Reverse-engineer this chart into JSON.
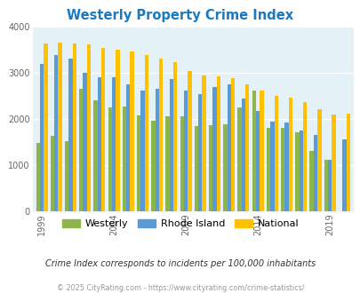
{
  "title": "Westerly Property Crime Index",
  "title_color": "#1a7abf",
  "years": [
    1999,
    2000,
    2001,
    2002,
    2003,
    2004,
    2005,
    2006,
    2007,
    2008,
    2009,
    2010,
    2011,
    2012,
    2013,
    2014,
    2015,
    2016,
    2017,
    2018,
    2019,
    2020
  ],
  "westerly": [
    1480,
    1620,
    1520,
    2640,
    2400,
    2240,
    2260,
    2070,
    1960,
    2050,
    2060,
    1840,
    1850,
    1870,
    2240,
    2610,
    1810,
    1800,
    1710,
    1300,
    1100,
    0
  ],
  "rhode_island": [
    3190,
    3370,
    3300,
    2990,
    2900,
    2900,
    2750,
    2600,
    2640,
    2850,
    2610,
    2540,
    2690,
    2740,
    2440,
    2170,
    1930,
    1920,
    1740,
    1650,
    1110,
    1550
  ],
  "national": [
    3620,
    3650,
    3620,
    3600,
    3530,
    3500,
    3450,
    3370,
    3310,
    3220,
    3040,
    2940,
    2920,
    2870,
    2740,
    2600,
    2490,
    2450,
    2360,
    2200,
    2090,
    2100
  ],
  "westerly_color": "#8db54b",
  "rhode_island_color": "#5b9bd5",
  "national_color": "#ffc000",
  "plot_bg_color": "#e4f2f7",
  "ylim": [
    0,
    4000
  ],
  "yticks": [
    0,
    1000,
    2000,
    3000,
    4000
  ],
  "xlabel_ticks": [
    1999,
    2004,
    2009,
    2014,
    2019
  ],
  "note_text": "Crime Index corresponds to incidents per 100,000 inhabitants",
  "footer_text": "© 2025 CityRating.com - https://www.cityrating.com/crime-statistics/",
  "legend_labels": [
    "Westerly",
    "Rhode Island",
    "National"
  ]
}
